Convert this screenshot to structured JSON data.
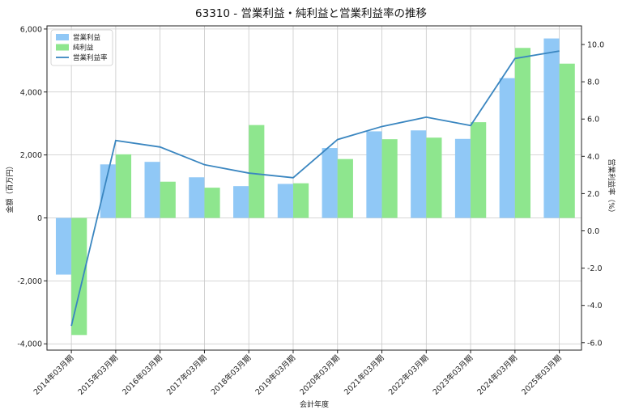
{
  "chart_data": {
    "type": "bar",
    "title": "63310 - 営業利益・純利益と営業利益率の推移",
    "xlabel": "会計年度",
    "ylabel": "金額（百万円）",
    "y2label": "営業利益率（%）",
    "categories": [
      "2014年03月期",
      "2015年03月期",
      "2016年03月期",
      "2017年03月期",
      "2018年03月期",
      "2019年03月期",
      "2020年03月期",
      "2021年03月期",
      "2022年03月期",
      "2023年03月期",
      "2024年03月期",
      "2025年03月期"
    ],
    "ylim": [
      -4200,
      6100
    ],
    "y2lim": [
      -6.4,
      11.0
    ],
    "yticks": [
      -4000,
      -2000,
      0,
      2000,
      4000,
      6000
    ],
    "ytick_labels": [
      "-4,000",
      "-2,000",
      "0",
      "2,000",
      "4,000",
      "6,000"
    ],
    "y2ticks": [
      -6,
      -4,
      -2,
      0,
      2,
      4,
      6,
      8,
      10
    ],
    "y2tick_labels": [
      "-6.0",
      "-4.0",
      "-2.0",
      "0.0",
      "2.0",
      "4.0",
      "6.0",
      "8.0",
      "10.0"
    ],
    "grid": true,
    "legend_position": "top-left",
    "series": [
      {
        "name": "営業利益",
        "type": "bar",
        "axis": "left",
        "color": "#90c8f6",
        "values": [
          -1800,
          1700,
          1780,
          1290,
          1010,
          1080,
          2220,
          2750,
          2780,
          2510,
          4440,
          5700
        ]
      },
      {
        "name": "純利益",
        "type": "bar",
        "axis": "left",
        "color": "#8ee68e",
        "values": [
          -3720,
          2020,
          1150,
          960,
          2950,
          1100,
          1870,
          2500,
          2550,
          3040,
          5400,
          4900
        ]
      },
      {
        "name": "営業利益率",
        "type": "line",
        "axis": "right",
        "color": "#3a86c0",
        "values": [
          -5.1,
          4.85,
          4.5,
          3.55,
          3.1,
          2.85,
          4.9,
          5.6,
          6.1,
          5.65,
          9.25,
          9.65
        ]
      }
    ]
  }
}
